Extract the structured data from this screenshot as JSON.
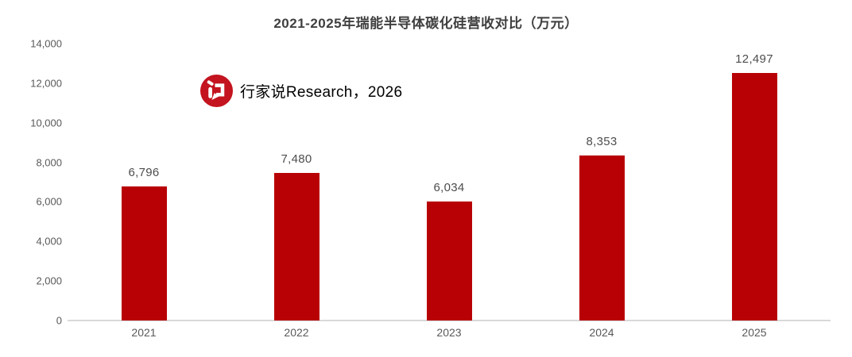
{
  "chart_data": {
    "type": "bar",
    "title": "2021-2025年瑞能半导体碳化硅营收对比（万元）",
    "categories": [
      "2021",
      "2022",
      "2023",
      "2024",
      "2025"
    ],
    "values": [
      6796,
      7480,
      6034,
      8353,
      12497
    ],
    "value_labels": [
      "6,796",
      "7,480",
      "6,034",
      "8,353",
      "12,497"
    ],
    "xlabel": "",
    "ylabel": "",
    "ylim": [
      0,
      14000
    ],
    "yticks": [
      0,
      2000,
      4000,
      6000,
      8000,
      10000,
      12000,
      14000
    ],
    "ytick_labels": [
      "0",
      "2,000",
      "4,000",
      "6,000",
      "8,000",
      "10,000",
      "12,000",
      "14,000"
    ],
    "grid": false,
    "legend": null,
    "bar_color": "#b80105"
  },
  "watermark": {
    "text": "行家说Research，2026",
    "icon": "hangjiashuo-speech-bubble-logo",
    "color": "#cd1a26"
  },
  "colors": {
    "title": "#3f3f3f",
    "value_label": "#4d4d4d",
    "axis_label": "#595959",
    "axis_line": "#d9d9d9",
    "background": "#ffffff"
  }
}
